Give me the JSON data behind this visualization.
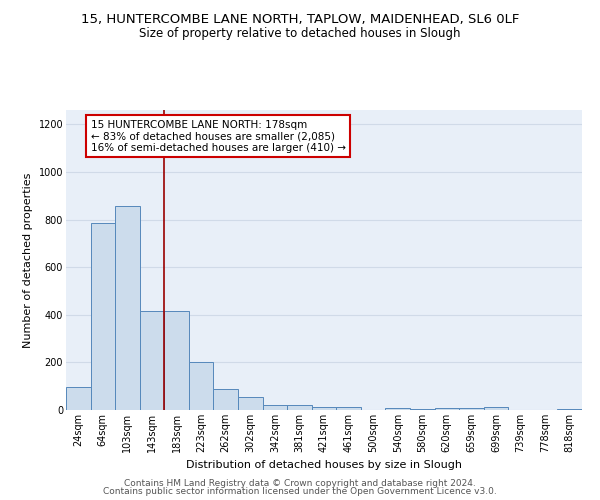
{
  "title": "15, HUNTERCOMBE LANE NORTH, TAPLOW, MAIDENHEAD, SL6 0LF",
  "subtitle": "Size of property relative to detached houses in Slough",
  "xlabel": "Distribution of detached houses by size in Slough",
  "ylabel": "Number of detached properties",
  "categories": [
    "24sqm",
    "64sqm",
    "103sqm",
    "143sqm",
    "183sqm",
    "223sqm",
    "262sqm",
    "302sqm",
    "342sqm",
    "381sqm",
    "421sqm",
    "461sqm",
    "500sqm",
    "540sqm",
    "580sqm",
    "620sqm",
    "659sqm",
    "699sqm",
    "739sqm",
    "778sqm",
    "818sqm"
  ],
  "values": [
    97,
    785,
    855,
    415,
    415,
    200,
    90,
    55,
    22,
    22,
    12,
    12,
    0,
    10,
    3,
    10,
    10,
    12,
    0,
    0,
    3
  ],
  "bar_color": "#ccdcec",
  "bar_edge_color": "#5588bb",
  "vline_x_pos": 3.5,
  "vline_color": "#990000",
  "annotation_text": "15 HUNTERCOMBE LANE NORTH: 178sqm\n← 83% of detached houses are smaller (2,085)\n16% of semi-detached houses are larger (410) →",
  "annotation_box_color": "white",
  "annotation_box_edge_color": "#cc0000",
  "ylim": [
    0,
    1260
  ],
  "yticks": [
    0,
    200,
    400,
    600,
    800,
    1000,
    1200
  ],
  "footer1": "Contains HM Land Registry data © Crown copyright and database right 2024.",
  "footer2": "Contains public sector information licensed under the Open Government Licence v3.0.",
  "bg_color": "#e8eff8",
  "grid_color": "#d0dae8",
  "title_fontsize": 9.5,
  "subtitle_fontsize": 8.5,
  "label_fontsize": 8,
  "tick_fontsize": 7,
  "footer_fontsize": 6.5,
  "ann_fontsize": 7.5
}
